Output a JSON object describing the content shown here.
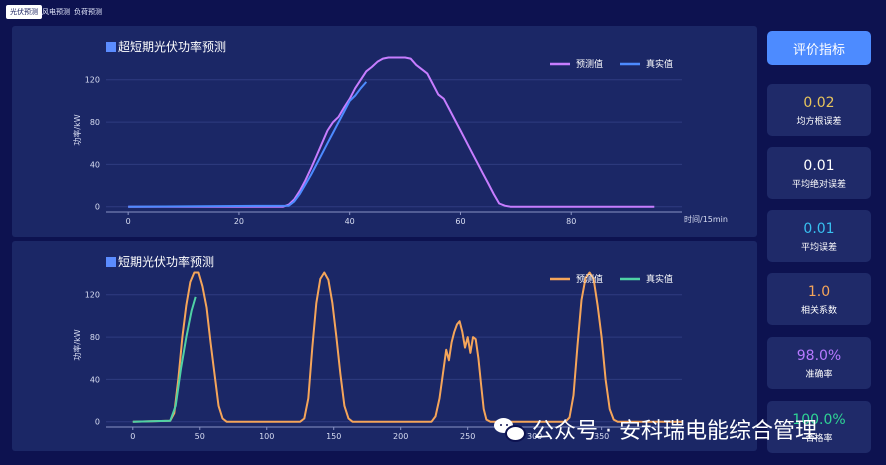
{
  "tabs": [
    {
      "label": "光伏预测",
      "active": true
    },
    {
      "label": "风电预测",
      "active": false
    },
    {
      "label": "负荷预测",
      "active": false
    }
  ],
  "sidebar": {
    "button_label": "评价指标",
    "metrics": [
      {
        "value": "0.02",
        "label": "均方根误差",
        "color": "#e7c45b"
      },
      {
        "value": "0.01",
        "label": "平均绝对误差",
        "color": "#ffffff"
      },
      {
        "value": "0.01",
        "label": "平均误差",
        "color": "#38c0f0"
      },
      {
        "value": "1.0",
        "label": "相关系数",
        "color": "#f5a55a"
      },
      {
        "value": "98.0%",
        "label": "准确率",
        "color": "#b679ff"
      },
      {
        "value": "100.0%",
        "label": "合格率",
        "color": "#2fd495"
      }
    ]
  },
  "watermark": "公众号 · 安科瑞电能综合管理",
  "chart_data": [
    {
      "type": "line",
      "title": "超短期光伏功率预测",
      "xlabel": "时间/15min",
      "ylabel": "功率/kW",
      "xlim": [
        -4,
        100
      ],
      "ylim": [
        -5,
        150
      ],
      "xticks": [
        0,
        20,
        40,
        60,
        80
      ],
      "yticks": [
        0,
        40,
        80,
        120
      ],
      "legend": "top-right",
      "series": [
        {
          "name": "预测值",
          "color": "#c77dff",
          "x": [
            0,
            28,
            29,
            30,
            31,
            32,
            33,
            34,
            35,
            36,
            37,
            38,
            39,
            40,
            41,
            42,
            43,
            44,
            45,
            46,
            47,
            48,
            49,
            50,
            51,
            52,
            53,
            54,
            55,
            56,
            57,
            58,
            59,
            60,
            61,
            62,
            63,
            64,
            65,
            66,
            67,
            68,
            69,
            70,
            95
          ],
          "y": [
            0,
            0,
            2,
            7,
            15,
            25,
            36,
            48,
            60,
            72,
            80,
            85,
            94,
            102,
            112,
            120,
            128,
            132,
            137,
            140,
            141,
            141,
            141,
            141,
            140,
            134,
            130,
            126,
            116,
            106,
            102,
            92,
            82,
            72,
            62,
            52,
            42,
            32,
            22,
            12,
            3,
            1,
            0,
            0,
            0
          ]
        },
        {
          "name": "真实值",
          "color": "#4d8bff",
          "x": [
            0,
            29,
            30,
            31,
            32,
            33,
            34,
            35,
            36,
            37,
            38,
            39,
            40,
            41,
            42,
            43
          ],
          "y": [
            0,
            1,
            5,
            12,
            21,
            30,
            40,
            50,
            60,
            70,
            80,
            90,
            100,
            105,
            112,
            118
          ]
        }
      ]
    },
    {
      "type": "line",
      "title": "短期光伏功率预测",
      "xlabel": "",
      "ylabel": "功率/kW",
      "xlim": [
        -20,
        410
      ],
      "ylim": [
        -5,
        150
      ],
      "xticks": [
        0,
        50,
        100,
        150,
        200,
        250,
        300,
        350
      ],
      "yticks": [
        0,
        40,
        80,
        120
      ],
      "legend": "top-right",
      "series": [
        {
          "name": "预测值",
          "color": "#f5a55a",
          "x": [
            0,
            28,
            31,
            34,
            37,
            40,
            43,
            46,
            49,
            52,
            55,
            58,
            61,
            64,
            67,
            70,
            125,
            128,
            131,
            134,
            137,
            140,
            143,
            146,
            149,
            152,
            155,
            158,
            161,
            164,
            167,
            170,
            223,
            226,
            229,
            232,
            234,
            236,
            238,
            240,
            242,
            244,
            246,
            248,
            250,
            252,
            254,
            256,
            258,
            260,
            262,
            264,
            267,
            270,
            323,
            326,
            329,
            332,
            335,
            338,
            341,
            344,
            347,
            350,
            353,
            356,
            359,
            362,
            365,
            368,
            410
          ],
          "y": [
            0,
            1,
            8,
            40,
            80,
            110,
            132,
            141,
            141,
            128,
            108,
            75,
            45,
            15,
            3,
            0,
            0,
            3,
            22,
            70,
            112,
            135,
            141,
            134,
            112,
            80,
            45,
            15,
            3,
            0,
            0,
            0,
            0,
            5,
            22,
            50,
            68,
            58,
            75,
            85,
            92,
            95,
            85,
            70,
            80,
            65,
            80,
            78,
            60,
            35,
            12,
            2,
            0,
            0,
            0,
            4,
            25,
            72,
            115,
            136,
            141,
            135,
            110,
            80,
            40,
            12,
            2,
            0,
            0,
            0,
            0
          ]
        },
        {
          "name": "真实值",
          "color": "#4fd1a5",
          "x": [
            0,
            28,
            32,
            36,
            40,
            44,
            47
          ],
          "y": [
            0,
            1,
            15,
            50,
            80,
            105,
            118
          ]
        }
      ]
    }
  ]
}
